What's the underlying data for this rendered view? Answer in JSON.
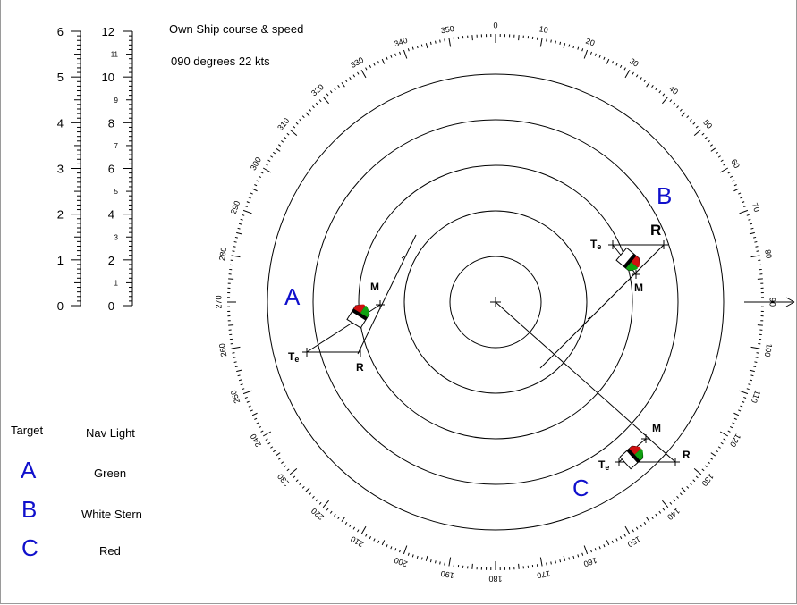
{
  "own_ship": {
    "title": "Own Ship course & speed",
    "value": "090 degrees  22 kts"
  },
  "scale_left": {
    "labels": [
      "0",
      "1",
      "2",
      "3",
      "4",
      "5",
      "6"
    ]
  },
  "scale_right": {
    "major_labels": [
      "0",
      "2",
      "4",
      "6",
      "8",
      "10",
      "12"
    ],
    "minor_labels": [
      "1",
      "3",
      "5",
      "7",
      "9",
      "11"
    ]
  },
  "compass": {
    "bearing_labels": [
      "0",
      "10",
      "20",
      "30",
      "40",
      "50",
      "60",
      "70",
      "80",
      "90",
      "100",
      "110",
      "120",
      "130",
      "140",
      "150",
      "160",
      "170",
      "180",
      "190",
      "200",
      "210",
      "220",
      "230",
      "240",
      "250",
      "260",
      "270",
      "280",
      "290",
      "300",
      "310",
      "320",
      "330",
      "340",
      "350"
    ]
  },
  "targets": [
    {
      "id": "A",
      "labels": {
        "M": "M",
        "R": "R",
        "T": "T",
        "Tsub": "e"
      }
    },
    {
      "id": "B",
      "labels": {
        "M": "M",
        "R": "R",
        "T": "T",
        "Tsub": "e"
      }
    },
    {
      "id": "C",
      "labels": {
        "M": "M",
        "R": "R",
        "T": "T",
        "Tsub": "e"
      }
    }
  ],
  "legend": {
    "header_target": "Target",
    "header_light": "Nav Light",
    "rows": [
      {
        "target": "A",
        "light": "Green"
      },
      {
        "target": "B",
        "light": "White Stern"
      },
      {
        "target": "C",
        "light": "Red"
      }
    ]
  },
  "colors": {
    "target_letter": "#1010cc",
    "port_light": "#d01010",
    "stbd_light": "#10a010"
  }
}
